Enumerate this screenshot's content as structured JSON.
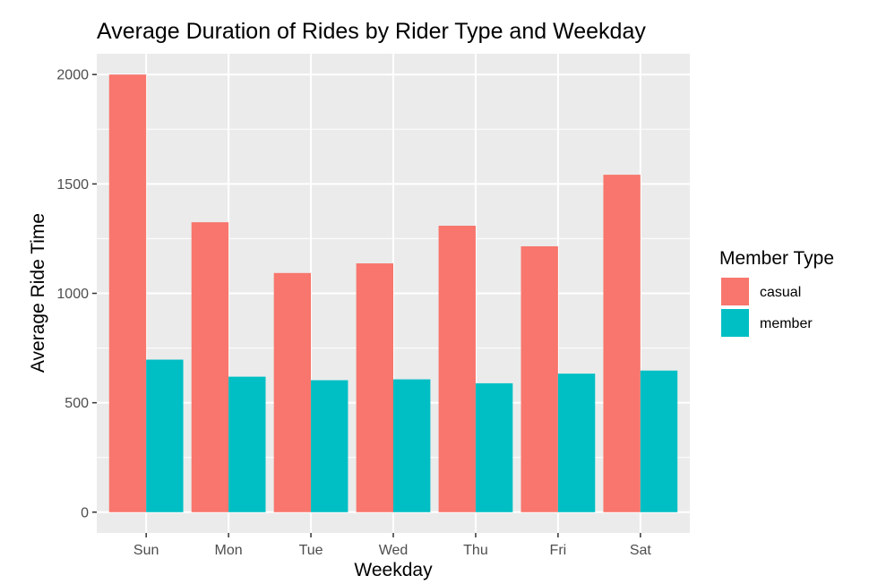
{
  "chart_data": {
    "type": "bar",
    "title": "Average Duration of Rides by Rider Type and Weekday",
    "xlabel": "Weekday",
    "ylabel": "Average Ride Time",
    "categories": [
      "Sun",
      "Mon",
      "Tue",
      "Wed",
      "Thu",
      "Fri",
      "Sat"
    ],
    "series": [
      {
        "name": "casual",
        "color": "#F8766D",
        "values": [
          2000,
          1325,
          1093,
          1137,
          1309,
          1215,
          1542
        ]
      },
      {
        "name": "member",
        "color": "#00BFC4",
        "values": [
          697,
          619,
          603,
          607,
          589,
          633,
          647
        ]
      }
    ],
    "ylim": [
      -95,
      2095
    ],
    "yticks": [
      0,
      500,
      1000,
      1500,
      2000
    ],
    "grid": true,
    "legend": {
      "title": "Member Type",
      "position": "right"
    }
  }
}
